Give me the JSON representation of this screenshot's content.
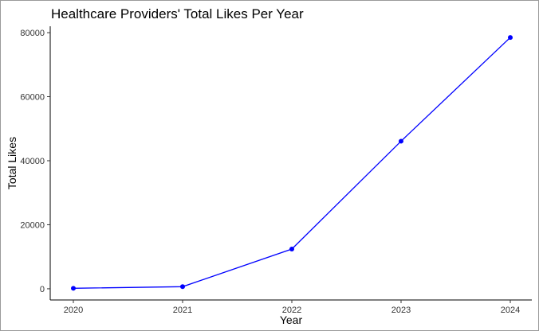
{
  "chart_data": {
    "type": "line",
    "title": "Healthcare Providers' Total Likes Per Year",
    "xlabel": "Year",
    "ylabel": "Total Likes",
    "x": [
      "2020",
      "2021",
      "2022",
      "2023",
      "2024"
    ],
    "series": [
      {
        "values": [
          150,
          650,
          12400,
          46100,
          78500
        ],
        "color": "#0000ff"
      }
    ],
    "yticks": [
      0,
      20000,
      40000,
      60000,
      80000
    ],
    "ytick_labels": [
      "0",
      "20000",
      "40000",
      "60000",
      "80000"
    ],
    "ylim": [
      -3500,
      82000
    ],
    "grid": false,
    "legend": "none"
  }
}
